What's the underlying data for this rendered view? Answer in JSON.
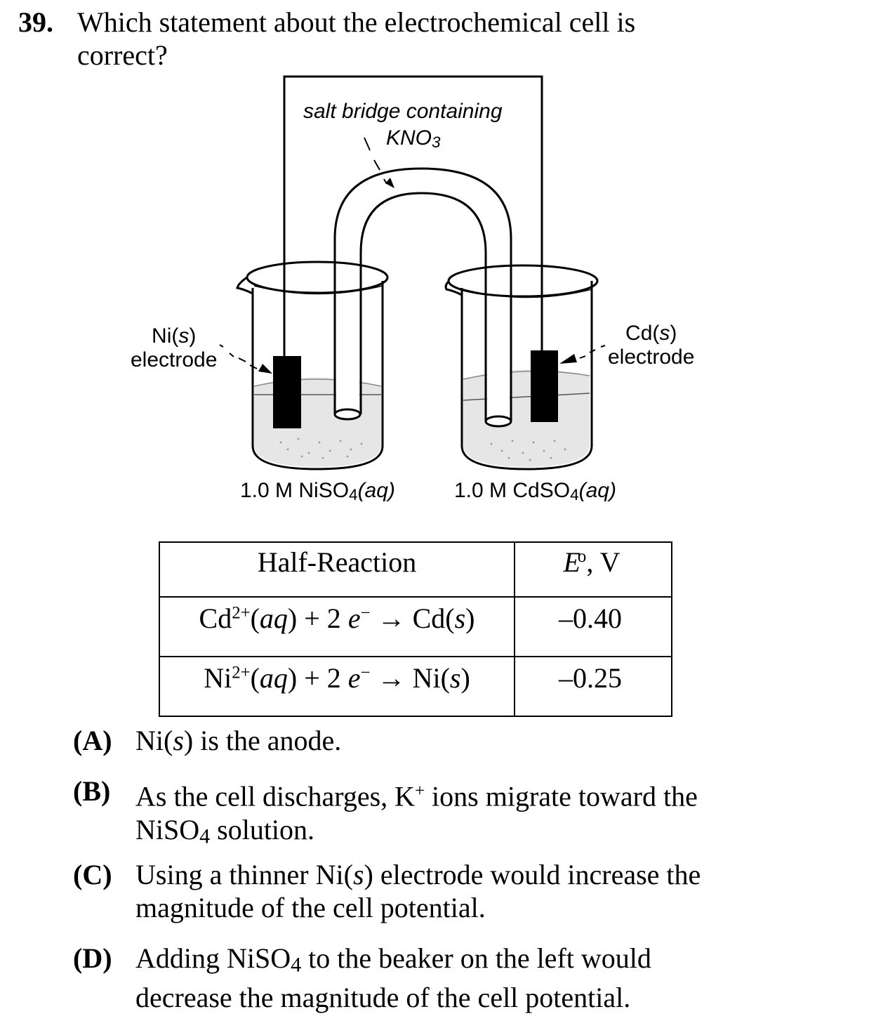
{
  "question": {
    "number": "39.",
    "text": "Which statement about the electrochemical cell is correct?"
  },
  "diagram": {
    "salt_bridge_label_1": "salt bridge containing",
    "salt_bridge_label_2": "KNO",
    "salt_bridge_label_sub": "3",
    "ni_label_pre": "Ni(",
    "ni_label_var": "s",
    "ni_label_post": ")",
    "ni_label_line2": "electrode",
    "cd_label_pre": "Cd(",
    "cd_label_var": "s",
    "cd_label_post": ")",
    "cd_label_line2": "electrode",
    "left_solution_pre": "1.0 M NiSO",
    "left_solution_sub": "4",
    "left_solution_var": "(aq)",
    "right_solution_pre": "1.0 M CdSO",
    "right_solution_sub": "4",
    "right_solution_var": "(aq)"
  },
  "table": {
    "header_reaction": "Half-Reaction",
    "header_potential_var": "E",
    "header_potential_sup": "o",
    "header_potential_unit": ", V",
    "rows": [
      {
        "ion": "Cd",
        "charge": "2+",
        "state1": "aq",
        "middle": ") + 2 ",
        "electron": "e",
        "esup": "−",
        "arrow": " → Cd(",
        "state2": "s",
        "end": ")",
        "potential": "–0.40"
      },
      {
        "ion": "Ni",
        "charge": "2+",
        "state1": "aq",
        "middle": ") + 2 ",
        "electron": "e",
        "esup": "−",
        "arrow": " → Ni(",
        "state2": "s",
        "end": ")",
        "potential": "–0.25"
      }
    ]
  },
  "choices": {
    "a": {
      "letter": "(A)",
      "p1": "Ni(",
      "v1": "s",
      "p2": ") is the anode."
    },
    "b": {
      "letter": "(B)",
      "p1": "As the cell discharges, K",
      "sup": "+",
      "p2": " ions migrate toward the",
      "p3": "NiSO",
      "sub": "4",
      "p4": " solution."
    },
    "c": {
      "letter": "(C)",
      "p1": "Using a thinner Ni(",
      "v1": "s",
      "p2": ") electrode would increase the",
      "p3": "magnitude of the cell potential."
    },
    "d": {
      "letter": "(D)",
      "p1": "Adding NiSO",
      "sub": "4",
      "p2": " to the beaker on the left would",
      "p3": "decrease the magnitude of the cell potential."
    }
  }
}
